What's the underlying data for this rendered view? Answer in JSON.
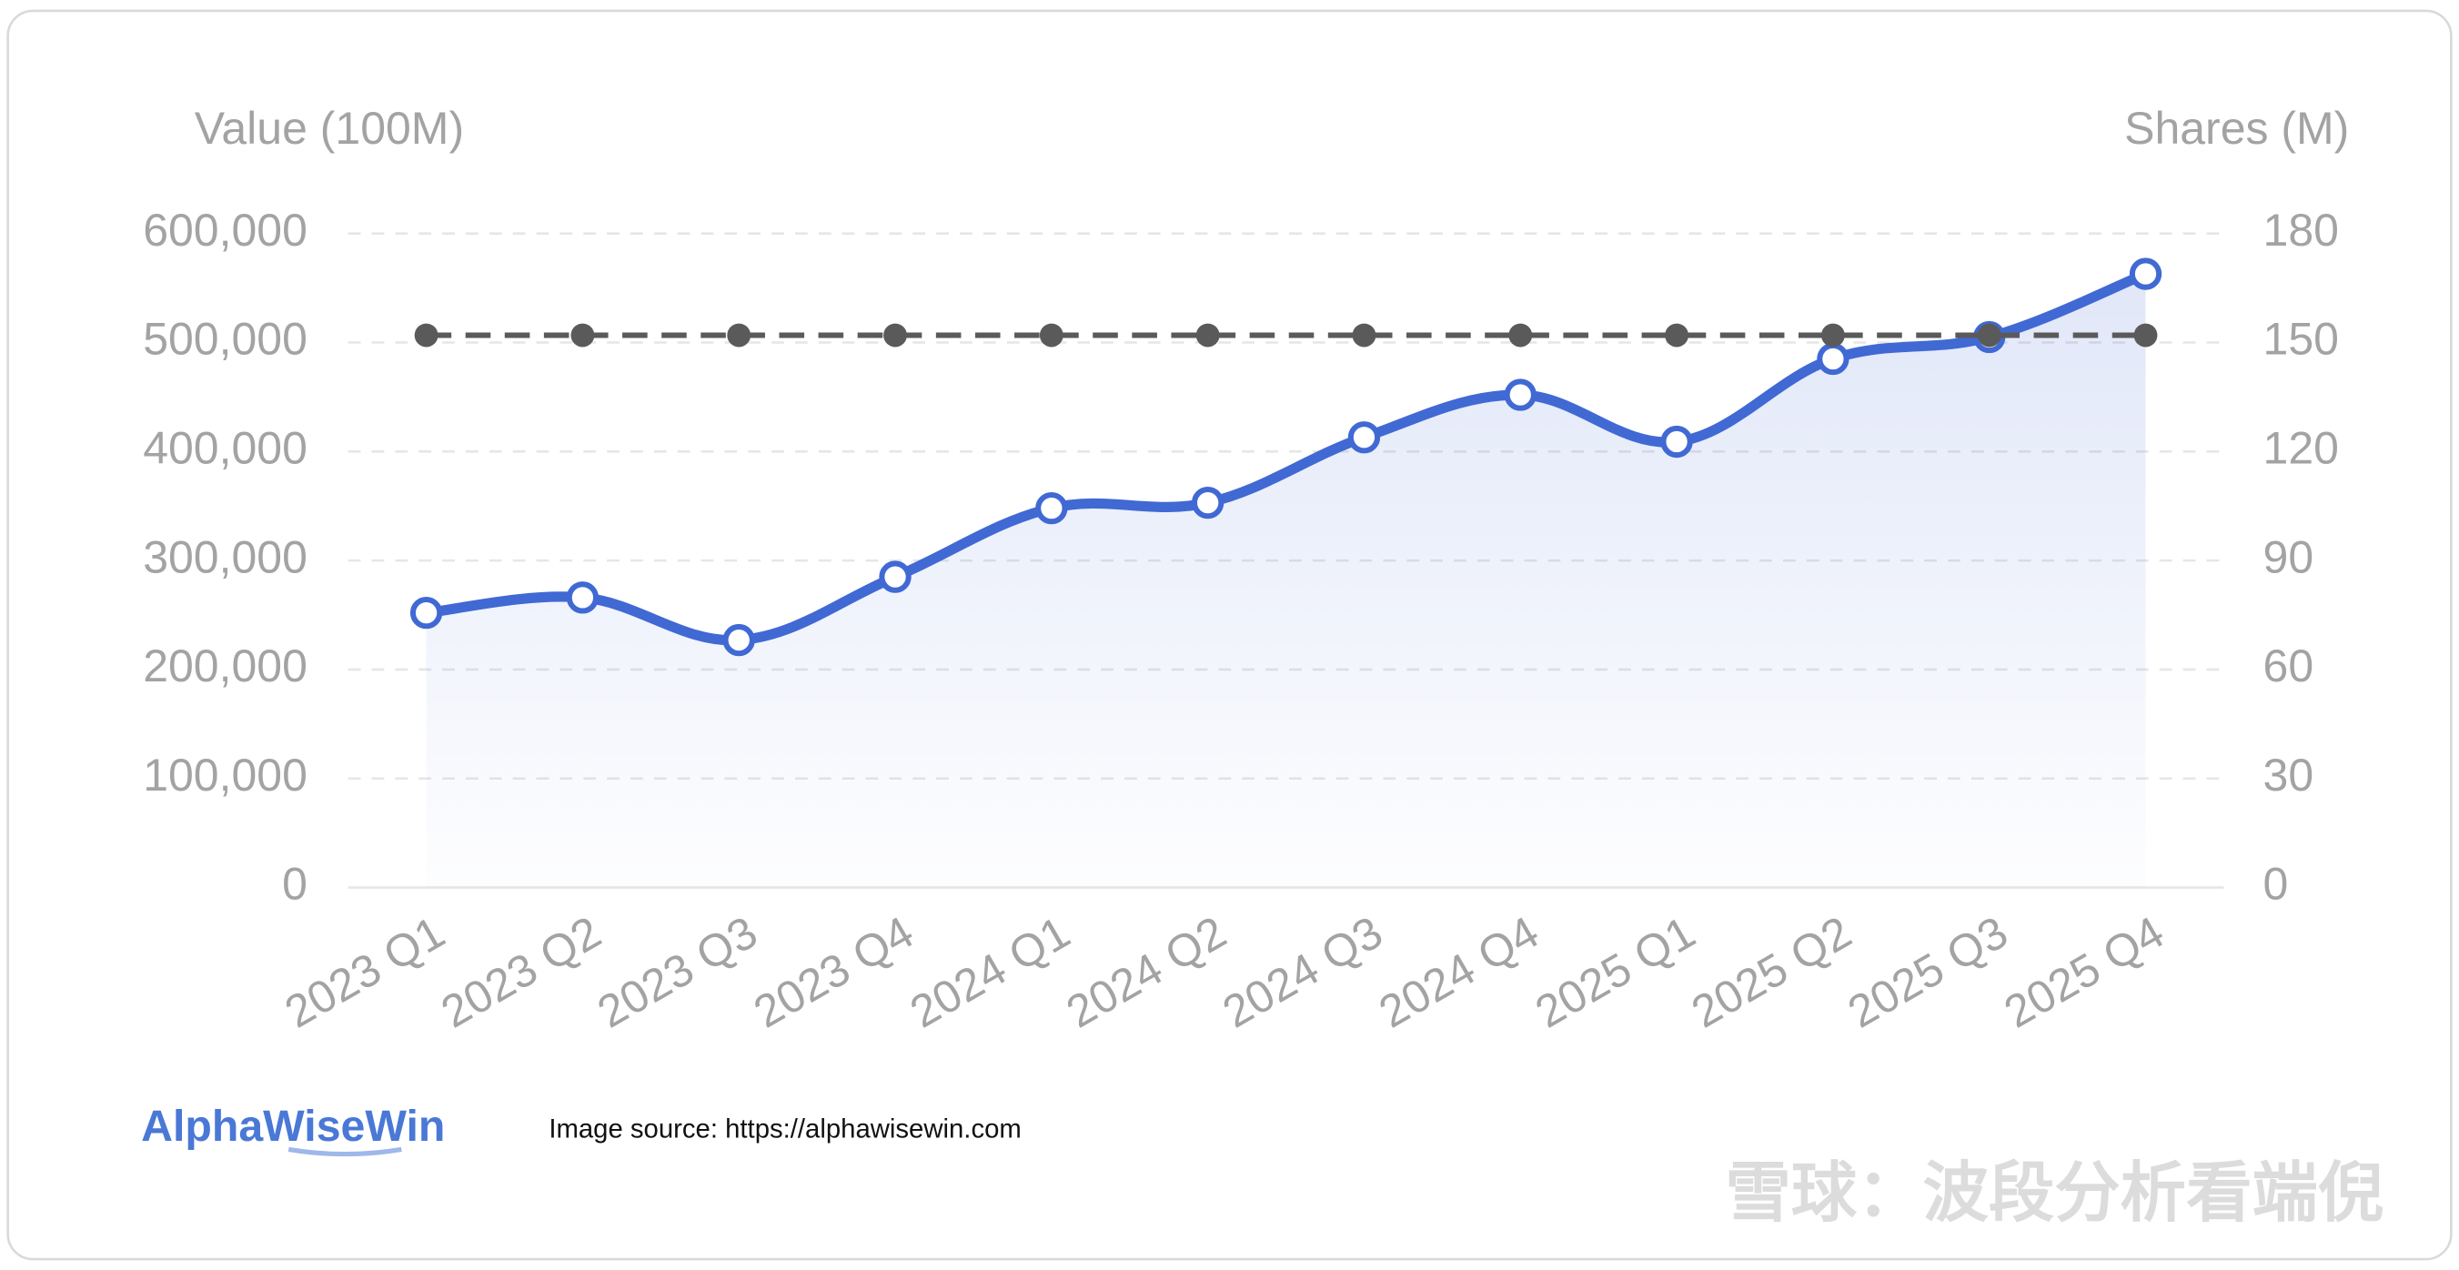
{
  "chart_data": {
    "type": "line",
    "y_label": "Value (100M)",
    "y2_label": "Shares (M)",
    "categories": [
      "2023 Q1",
      "2023 Q2",
      "2023 Q3",
      "2023 Q4",
      "2024 Q1",
      "2024 Q2",
      "2024 Q3",
      "2024 Q4",
      "2025 Q1",
      "2025 Q2",
      "2025 Q3",
      "2025 Q4"
    ],
    "series": [
      {
        "color": "#4169d4",
        "axis": "y",
        "values": [
          252000,
          266000,
          227000,
          285000,
          348000,
          353000,
          413000,
          452000,
          409000,
          485000,
          505000,
          563000
        ]
      },
      {
        "color": "#5a5a5a",
        "axis": "y2",
        "dashed": true,
        "values": [
          152,
          152,
          152,
          152,
          152,
          152,
          152,
          152,
          152,
          152,
          152,
          152
        ]
      }
    ],
    "ylim": [
      0,
      600000
    ],
    "yticks": [
      0,
      {
        "value": 100000,
        "label": "100,000"
      },
      {
        "value": 200000,
        "label": "200,000"
      },
      {
        "value": 300000,
        "label": "300,000"
      },
      {
        "value": 400000,
        "label": "400,000"
      },
      {
        "value": 500000,
        "label": "500,000"
      },
      {
        "value": 600000,
        "label": "600,000"
      }
    ],
    "y2lim": [
      0,
      180
    ],
    "y2ticks": [
      0,
      30,
      60,
      90,
      120,
      150,
      180
    ],
    "grid": true,
    "logo": "AlphaWiseWin",
    "source": "Image source: https://alphawisewin.com",
    "watermark": "雪球：波段分析看端倪"
  }
}
